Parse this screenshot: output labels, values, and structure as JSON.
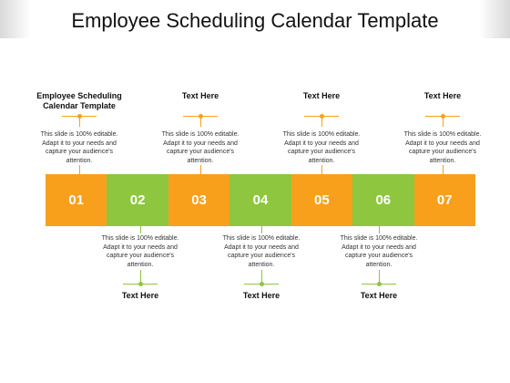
{
  "title": "Employee Scheduling Calendar Template",
  "colors": {
    "orange": "#f8a01c",
    "green": "#8ec63f"
  },
  "steps": [
    {
      "number": "01",
      "color": "orange"
    },
    {
      "number": "02",
      "color": "green"
    },
    {
      "number": "03",
      "color": "orange"
    },
    {
      "number": "04",
      "color": "green"
    },
    {
      "number": "05",
      "color": "orange"
    },
    {
      "number": "06",
      "color": "green"
    },
    {
      "number": "07",
      "color": "orange"
    }
  ],
  "top_callouts": [
    {
      "heading": "Employee Scheduling Calendar Template",
      "body": "This slide is 100% editable. Adapt it to your needs and capture your audience's attention."
    },
    {
      "heading": "Text Here",
      "body": "This slide is 100% editable. Adapt it to your needs and capture your audience's attention."
    },
    {
      "heading": "Text Here",
      "body": "This slide is 100% editable. Adapt it to your needs and capture your audience's attention."
    },
    {
      "heading": "Text Here",
      "body": "This slide is 100% editable. Adapt it to your needs and capture your audience's attention."
    }
  ],
  "bottom_callouts": [
    {
      "heading": "Text Here",
      "body": "This slide is 100% editable. Adapt it to your needs and capture your audience's attention."
    },
    {
      "heading": "Text Here",
      "body": "This slide is 100% editable. Adapt it to your needs and capture your audience's attention."
    },
    {
      "heading": "Text Here",
      "body": "This slide is 100% editable. Adapt it to your needs and capture your audience's attention."
    }
  ]
}
